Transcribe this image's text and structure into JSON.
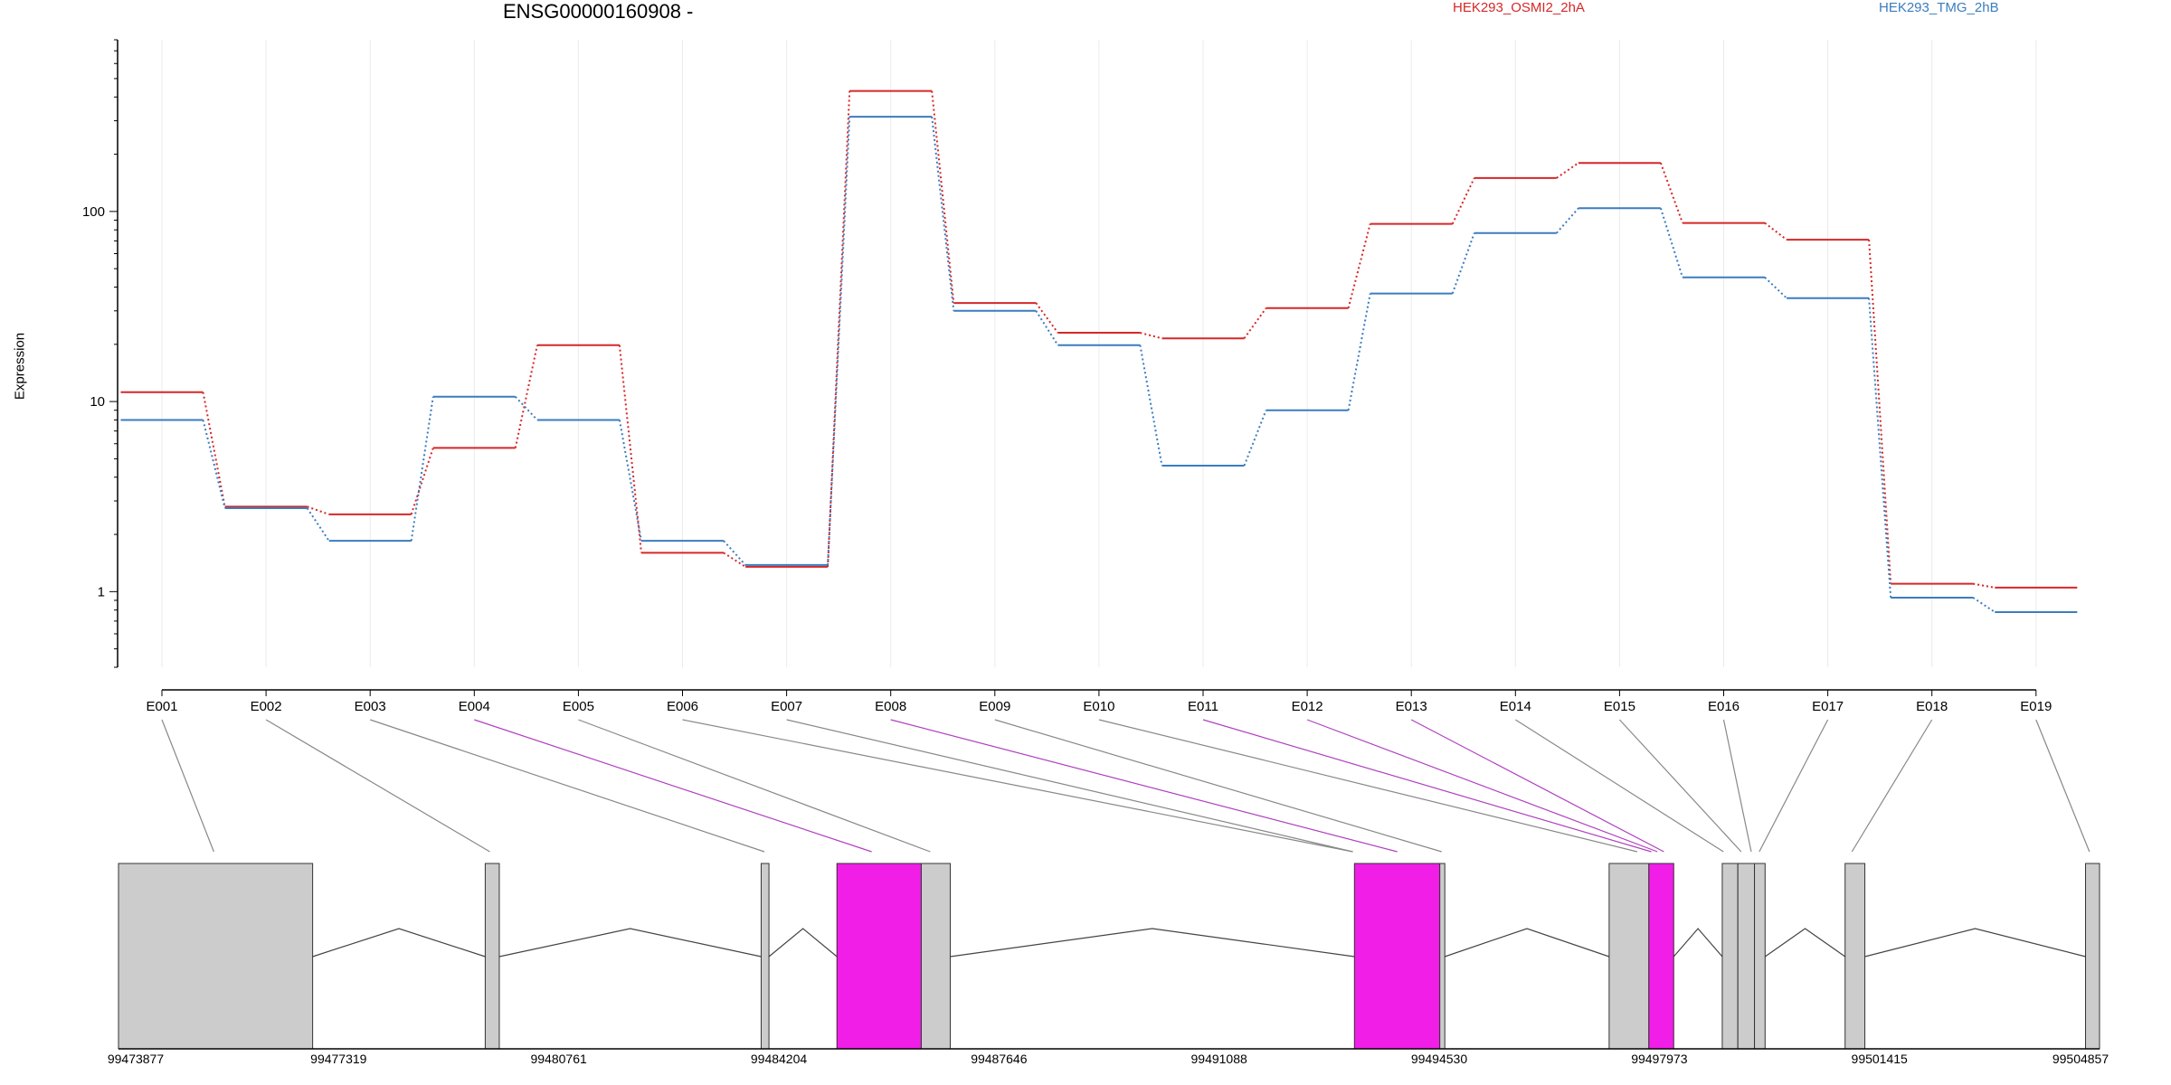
{
  "chart_data": {
    "type": "line",
    "title": "ENSG00000160908 -",
    "xlabel": "",
    "ylabel": "Expression",
    "y_scale": "log",
    "ylim": [
      0.4,
      800
    ],
    "yticks": [
      1,
      10,
      100
    ],
    "ytick_labels": [
      "1",
      "10",
      "100"
    ],
    "legend_position": "top",
    "categories": [
      "E001",
      "E002",
      "E003",
      "E004",
      "E005",
      "E006",
      "E007",
      "E008",
      "E009",
      "E010",
      "E011",
      "E012",
      "E013",
      "E014",
      "E015",
      "E016",
      "E017",
      "E018",
      "E019"
    ],
    "series": [
      {
        "name": "HEK293_OSMI2_2hA",
        "color": "#d62728",
        "values": [
          11.2,
          2.8,
          2.55,
          5.7,
          19.8,
          1.6,
          1.35,
          430,
          33,
          23,
          21.5,
          31,
          86,
          150,
          180,
          87,
          71,
          1.1,
          1.05
        ]
      },
      {
        "name": "HEK293_TMG_2hB",
        "color": "#3a7dbf",
        "values": [
          8,
          2.75,
          1.85,
          10.6,
          8,
          1.85,
          1.38,
          315,
          30,
          19.8,
          4.6,
          9,
          37,
          77,
          104,
          45,
          35,
          0.93,
          0.78
        ]
      }
    ],
    "gene_model": {
      "coordinate_labels": [
        "99473877",
        "99477319",
        "99480761",
        "99484204",
        "99487646",
        "99491088",
        "99494530",
        "99497973",
        "99501415",
        "99504857"
      ],
      "coordinate_values": [
        99473877,
        99477319,
        99480761,
        99484204,
        99487646,
        99491088,
        99494530,
        99497973,
        99501415,
        99504857
      ],
      "highlight_color": "#f01ee6",
      "exon_color": "#cccccc",
      "blocks": [
        {
          "start": 99473877,
          "end": 99476913,
          "highlight": false
        },
        {
          "start": 99479612,
          "end": 99479832,
          "highlight": false
        },
        {
          "start": 99483927,
          "end": 99484049,
          "highlight": false
        },
        {
          "start": 99485112,
          "end": 99486431,
          "highlight": true
        },
        {
          "start": 99486431,
          "end": 99486884,
          "highlight": false
        },
        {
          "start": 99493205,
          "end": 99494540,
          "highlight": true
        },
        {
          "start": 99494540,
          "end": 99494618,
          "highlight": false
        },
        {
          "start": 99497188,
          "end": 99497809,
          "highlight": false
        },
        {
          "start": 99497809,
          "end": 99498198,
          "highlight": true
        },
        {
          "start": 99498957,
          "end": 99499201,
          "highlight": false
        },
        {
          "start": 99499201,
          "end": 99499461,
          "highlight": false
        },
        {
          "start": 99499461,
          "end": 99499627,
          "highlight": false
        },
        {
          "start": 99500878,
          "end": 99501187,
          "highlight": false
        },
        {
          "start": 99504638,
          "end": 99504857,
          "highlight": false
        }
      ],
      "introns": [
        {
          "start": 99476913,
          "end": 99479612
        },
        {
          "start": 99479832,
          "end": 99483927
        },
        {
          "start": 99484049,
          "end": 99485112
        },
        {
          "start": 99486884,
          "end": 99493205
        },
        {
          "start": 99494618,
          "end": 99497188
        },
        {
          "start": 99498198,
          "end": 99498957
        },
        {
          "start": 99499627,
          "end": 99500878
        },
        {
          "start": 99501187,
          "end": 99504638
        }
      ],
      "exon_links": [
        {
          "bin": "E001",
          "pos": 99475368,
          "highlight": false
        },
        {
          "bin": "E002",
          "pos": 99479684,
          "highlight": false
        },
        {
          "bin": "E003",
          "pos": 99483977,
          "highlight": false
        },
        {
          "bin": "E004",
          "pos": 99485655,
          "highlight": true
        },
        {
          "bin": "E005",
          "pos": 99486572,
          "highlight": false
        },
        {
          "bin": "E006",
          "pos": 99493180,
          "highlight": false
        },
        {
          "bin": "E007",
          "pos": 99493180,
          "highlight": false
        },
        {
          "bin": "E008",
          "pos": 99493875,
          "highlight": true
        },
        {
          "bin": "E009",
          "pos": 99494569,
          "highlight": false
        },
        {
          "bin": "E010",
          "pos": 99497627,
          "highlight": false
        },
        {
          "bin": "E011",
          "pos": 99497848,
          "highlight": true
        },
        {
          "bin": "E012",
          "pos": 99497943,
          "highlight": true
        },
        {
          "bin": "E013",
          "pos": 99498044,
          "highlight": true
        },
        {
          "bin": "E014",
          "pos": 99498976,
          "highlight": false
        },
        {
          "bin": "E015",
          "pos": 99499253,
          "highlight": false
        },
        {
          "bin": "E016",
          "pos": 99499410,
          "highlight": false
        },
        {
          "bin": "E017",
          "pos": 99499536,
          "highlight": false
        },
        {
          "bin": "E018",
          "pos": 99500985,
          "highlight": false
        },
        {
          "bin": "E019",
          "pos": 99504699,
          "highlight": false
        }
      ]
    }
  }
}
